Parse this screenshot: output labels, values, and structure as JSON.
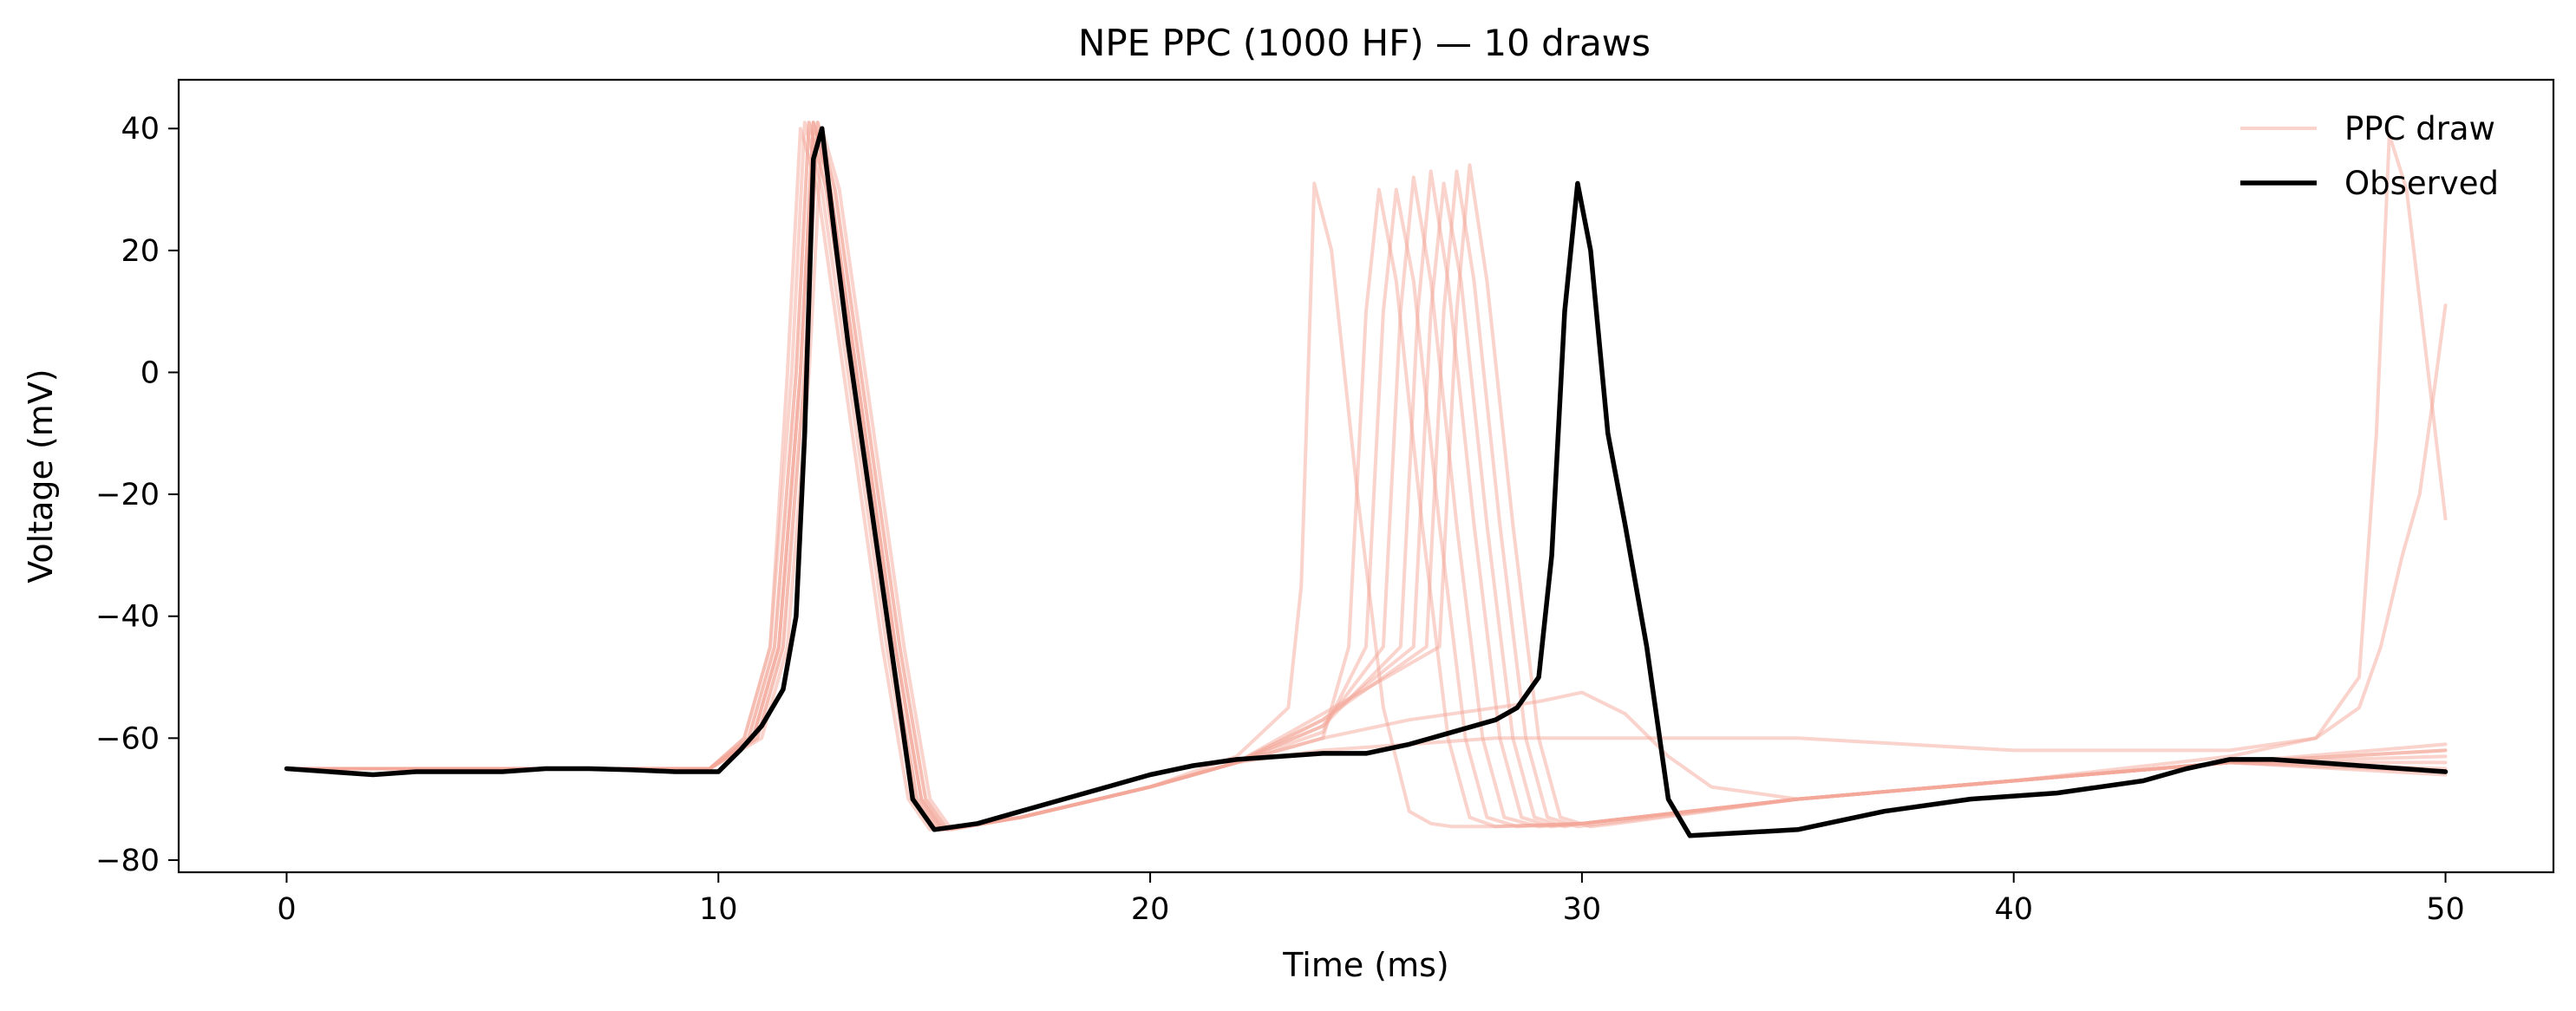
{
  "chart_data": {
    "type": "line",
    "title": "NPE PPC (1000 HF) — 10 draws",
    "xlabel": "Time (ms)",
    "ylabel": "Voltage (mV)",
    "xlim": [
      -2.5,
      52.5
    ],
    "ylim": [
      -82,
      48
    ],
    "xticks": [
      0,
      10,
      20,
      30,
      40,
      50
    ],
    "yticks": [
      -80,
      -60,
      -40,
      -20,
      0,
      20,
      40
    ],
    "xtick_labels": [
      "0",
      "10",
      "20",
      "30",
      "40",
      "50"
    ],
    "ytick_labels": [
      "−80",
      "−60",
      "−40",
      "−20",
      "0",
      "20",
      "40"
    ],
    "grid": false,
    "legend": {
      "placement": "top-right",
      "entries": [
        "PPC draw",
        "Observed"
      ]
    },
    "colors": {
      "ppc": "#f4a89a",
      "observed": "#000000"
    },
    "observed": {
      "name": "Observed",
      "x": [
        0,
        1,
        2,
        3,
        4,
        5,
        6,
        7,
        8,
        9,
        10,
        10.5,
        11,
        11.5,
        11.8,
        12.0,
        12.2,
        12.4,
        12.7,
        13.0,
        13.5,
        14.0,
        14.5,
        15.0,
        15.5,
        16,
        17,
        18,
        19,
        20,
        21,
        22,
        23,
        24,
        25,
        26,
        27,
        28,
        28.5,
        29.0,
        29.3,
        29.6,
        29.9,
        30.2,
        30.6,
        31.0,
        31.5,
        32.0,
        32.5,
        33,
        35,
        37,
        39,
        41,
        43,
        44,
        45,
        46,
        47,
        48,
        49,
        50
      ],
      "y": [
        -65,
        -65.5,
        -66,
        -65.5,
        -65.5,
        -65.5,
        -65,
        -65,
        -65.2,
        -65.5,
        -65.5,
        -62,
        -58,
        -52,
        -40,
        -10,
        35,
        40,
        22,
        5,
        -20,
        -45,
        -70,
        -75,
        -74.5,
        -74,
        -72,
        -70,
        -68,
        -66,
        -64.5,
        -63.5,
        -63,
        -62.5,
        -62.5,
        -61,
        -59,
        -57,
        -55,
        -50,
        -30,
        10,
        31,
        20,
        -10,
        -25,
        -45,
        -70,
        -76,
        -75.8,
        -75,
        -72,
        -70,
        -69,
        -67,
        -65,
        -63.5,
        -63.5,
        -64,
        -64.5,
        -65,
        -65.5
      ]
    },
    "series": [
      {
        "x": [
          0,
          5,
          9.8,
          10.6,
          11.2,
          11.6,
          11.9,
          12.3,
          13.0,
          13.8,
          14.4,
          14.9,
          17,
          20,
          22,
          23.2,
          23.5,
          23.8,
          24.2,
          24.8,
          25.4,
          26.0,
          26.5,
          27,
          28,
          30,
          35,
          40,
          45,
          50
        ],
        "y": [
          -65,
          -65,
          -65,
          -60,
          -45,
          0,
          40,
          30,
          -5,
          -45,
          -70,
          -75,
          -73,
          -68,
          -63,
          -55,
          -35,
          31,
          20,
          -20,
          -55,
          -72,
          -74,
          -74.5,
          -74.5,
          -74,
          -70,
          -67,
          -64,
          -62
        ]
      },
      {
        "x": [
          0,
          5,
          9.8,
          10.6,
          11.2,
          11.7,
          12.0,
          12.4,
          13.1,
          13.9,
          14.5,
          15.0,
          17,
          20,
          22,
          24,
          24.6,
          25.0,
          25.3,
          25.7,
          26.3,
          26.9,
          27.4,
          28,
          30,
          35,
          40,
          45,
          47,
          48,
          48.4,
          48.7,
          49.1,
          49.6,
          50
        ],
        "y": [
          -65,
          -65,
          -65,
          -60,
          -45,
          0,
          41,
          30,
          -5,
          -45,
          -70,
          -75,
          -73,
          -68,
          -64,
          -60,
          -45,
          10,
          30,
          15,
          -25,
          -60,
          -73,
          -74.5,
          -74,
          -70,
          -67,
          -63,
          -60,
          -50,
          -10,
          39,
          30,
          0,
          -24
        ]
      },
      {
        "x": [
          0,
          5,
          9.8,
          10.7,
          11.3,
          11.8,
          12.1,
          12.5,
          13.2,
          14.0,
          14.6,
          15.1,
          17,
          20,
          22,
          24,
          25.0,
          25.4,
          25.7,
          26.1,
          26.7,
          27.3,
          27.8,
          28.5,
          30,
          35,
          40,
          45,
          50
        ],
        "y": [
          -65,
          -65,
          -65,
          -60,
          -45,
          0,
          41,
          30,
          -5,
          -45,
          -70,
          -75,
          -73,
          -68,
          -64,
          -59,
          -45,
          10,
          30,
          15,
          -25,
          -60,
          -73,
          -74.5,
          -74,
          -70,
          -67,
          -64,
          -61
        ]
      },
      {
        "x": [
          0,
          5,
          9.8,
          10.8,
          11.4,
          11.9,
          12.2,
          12.6,
          13.3,
          14.1,
          14.7,
          15.2,
          17,
          20,
          22,
          24,
          25.4,
          25.8,
          26.1,
          26.5,
          27.1,
          27.7,
          28.2,
          29,
          30,
          35,
          40,
          45,
          50
        ],
        "y": [
          -65,
          -65,
          -65,
          -60,
          -45,
          0,
          41,
          30,
          -5,
          -45,
          -70,
          -75,
          -73,
          -68,
          -64,
          -58,
          -45,
          10,
          32,
          15,
          -25,
          -60,
          -73,
          -74.5,
          -74,
          -70,
          -67,
          -64,
          -62
        ]
      },
      {
        "x": [
          0,
          5,
          9.8,
          10.9,
          11.5,
          12.0,
          12.3,
          12.7,
          13.4,
          14.2,
          14.8,
          15.3,
          17,
          20,
          22,
          24,
          25.8,
          26.2,
          26.5,
          26.9,
          27.5,
          28.1,
          28.6,
          29.3,
          30,
          35,
          40,
          45,
          50
        ],
        "y": [
          -65,
          -65,
          -65,
          -60,
          -45,
          0,
          41,
          30,
          -5,
          -45,
          -70,
          -75,
          -73,
          -68,
          -64,
          -58,
          -45,
          10,
          33,
          15,
          -25,
          -60,
          -73,
          -74.5,
          -74,
          -70,
          -67,
          -64,
          -63
        ]
      },
      {
        "x": [
          0,
          5,
          9.8,
          11.0,
          11.6,
          12.1,
          12.4,
          12.8,
          13.5,
          14.3,
          14.9,
          15.4,
          17,
          20,
          22,
          24,
          26.1,
          26.5,
          26.8,
          27.2,
          27.8,
          28.4,
          28.9,
          29.6,
          30,
          35,
          40,
          45,
          50
        ],
        "y": [
          -65,
          -65,
          -65,
          -60,
          -45,
          0,
          40,
          30,
          -5,
          -45,
          -70,
          -75,
          -73,
          -68,
          -64,
          -57,
          -45,
          10,
          31,
          15,
          -25,
          -60,
          -73,
          -74.5,
          -74,
          -70,
          -67,
          -64,
          -64
        ]
      },
      {
        "x": [
          0,
          5,
          9.8,
          10.9,
          11.5,
          12.0,
          12.3,
          12.7,
          13.4,
          14.2,
          14.8,
          15.3,
          17,
          20,
          22,
          24,
          26.4,
          26.8,
          27.1,
          27.5,
          28.1,
          28.7,
          29.2,
          29.9,
          30.5,
          35,
          40,
          45,
          50
        ],
        "y": [
          -65,
          -65,
          -65,
          -60,
          -45,
          0,
          41,
          30,
          -5,
          -45,
          -70,
          -75,
          -73,
          -68,
          -64,
          -57,
          -45,
          10,
          33,
          15,
          -25,
          -60,
          -73,
          -74.5,
          -74,
          -70,
          -67,
          -64,
          -65
        ]
      },
      {
        "x": [
          0,
          5,
          9.8,
          10.8,
          11.4,
          11.9,
          12.2,
          12.6,
          13.3,
          14.1,
          14.7,
          15.2,
          17,
          20,
          22,
          24,
          26.7,
          27.1,
          27.4,
          27.8,
          28.4,
          29.0,
          29.5,
          30.2,
          30.8,
          35,
          40,
          45,
          50
        ],
        "y": [
          -65,
          -65,
          -65,
          -60,
          -45,
          0,
          41,
          30,
          -5,
          -45,
          -70,
          -75,
          -73,
          -68,
          -64,
          -56,
          -45,
          10,
          34,
          15,
          -25,
          -60,
          -73,
          -74.5,
          -74,
          -70,
          -67,
          -64,
          -66
        ]
      },
      {
        "x": [
          0,
          5,
          9.8,
          10.7,
          11.3,
          11.8,
          12.1,
          12.5,
          13.2,
          14.0,
          14.6,
          15.1,
          17,
          20,
          22,
          24,
          26,
          28,
          29,
          30,
          31,
          32,
          33,
          35,
          40,
          45,
          50
        ],
        "y": [
          -65,
          -65,
          -65,
          -60,
          -45,
          0,
          41,
          30,
          -5,
          -45,
          -70,
          -75,
          -73,
          -68,
          -64,
          -60,
          -57,
          -55,
          -54,
          -52.5,
          -56,
          -63,
          -68,
          -70,
          -67,
          -64,
          -65.5
        ]
      },
      {
        "x": [
          0,
          5,
          9.8,
          10.8,
          11.4,
          11.9,
          12.2,
          12.6,
          13.3,
          14.1,
          14.7,
          15.2,
          17,
          20,
          22,
          24,
          26,
          28,
          30,
          35,
          40,
          45,
          47,
          48,
          48.5,
          49.0,
          49.4,
          49.7,
          50
        ],
        "y": [
          -65,
          -65,
          -65,
          -60,
          -45,
          0,
          41,
          30,
          -5,
          -45,
          -70,
          -75,
          -73,
          -68,
          -64,
          -62,
          -61,
          -60,
          -60,
          -60,
          -62,
          -62,
          -60,
          -55,
          -45,
          -30,
          -20,
          -5,
          11
        ]
      }
    ]
  }
}
